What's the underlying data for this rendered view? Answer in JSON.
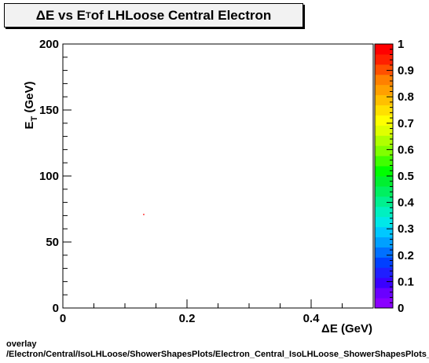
{
  "title": {
    "pre": "ΔE vs E",
    "sub": "T",
    "post": " of LHLoose Central  Electron"
  },
  "footer": {
    "line1": "overlay",
    "line2": "/Electron/Central/IsoLHLoose/ShowerShapesPlots/Electron_Central_IsoLHLoose_ShowerShapesPlots_deltaE_vs_et"
  },
  "chart_data": {
    "type": "heatmap",
    "title": "ΔE vs E_T of LHLoose Central  Electron",
    "xlabel": "ΔE (GeV)",
    "ylabel": "E_T (GeV)",
    "xlim": [
      0,
      0.5
    ],
    "ylim": [
      0,
      200
    ],
    "x_ticks": [
      "0",
      "0.2",
      "0.4"
    ],
    "y_ticks": [
      "0",
      "50",
      "100",
      "150",
      "200"
    ],
    "grid": false,
    "colorbar": {
      "range": [
        0,
        1
      ],
      "ticks": [
        "0",
        "0.1",
        "0.2",
        "0.3",
        "0.4",
        "0.5",
        "0.6",
        "0.7",
        "0.8",
        "0.9",
        "1"
      ],
      "colors": [
        "#8a00ff",
        "#6a00ff",
        "#3a00ff",
        "#1f1fff",
        "#0040ff",
        "#0070ff",
        "#00a0ff",
        "#00c8ff",
        "#00e8e8",
        "#00f0c0",
        "#00f090",
        "#00f060",
        "#00f030",
        "#00ff00",
        "#40ff00",
        "#80ff00",
        "#b0ff00",
        "#e0ff00",
        "#ffff00",
        "#ffe000",
        "#ffc000",
        "#ffa000",
        "#ff8000",
        "#ff5000",
        "#ff2000",
        "#ff0000"
      ]
    },
    "points": [
      {
        "x": 0.13,
        "y": 71,
        "value": 1
      }
    ]
  }
}
